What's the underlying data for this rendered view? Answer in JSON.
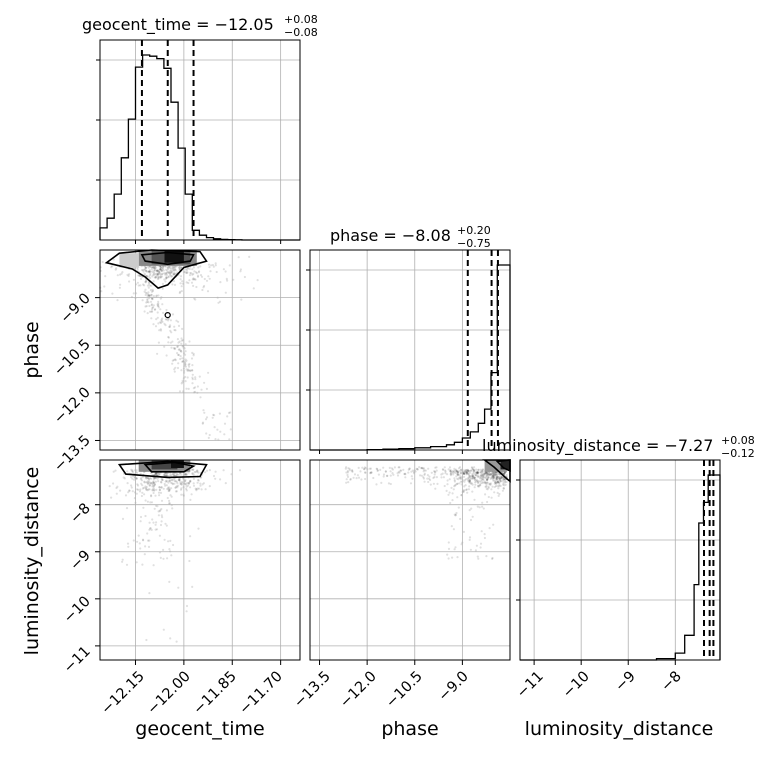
{
  "chart_data": {
    "type": "corner",
    "parameters": [
      "geocent_time",
      "phase",
      "luminosity_distance"
    ],
    "titles": [
      {
        "text": "geocent_time = −12.05",
        "plus": "+0.08",
        "minus": "−0.08"
      },
      {
        "text": "phase = −8.08",
        "plus": "+0.20",
        "minus": "−0.75"
      },
      {
        "text": "luminosity_distance = −7.27",
        "plus": "+0.08",
        "minus": "−0.12"
      }
    ],
    "axis_labels": [
      "geocent_time",
      "phase",
      "luminosity_distance"
    ],
    "x_tick_labels": [
      [
        "−12.15",
        "−12.00",
        "−11.85",
        "−11.70"
      ],
      [
        "−13.5",
        "−12.0",
        "−10.5",
        "−9.0"
      ],
      [
        "−11",
        "−10",
        "−9",
        "−8"
      ]
    ],
    "y_tick_labels": {
      "phase": [
        "−9.0",
        "−10.5",
        "−12.0",
        "−13.5"
      ],
      "luminosity_distance": [
        "−8",
        "−9",
        "−10",
        "−11"
      ]
    },
    "ranges": {
      "geocent_time": [
        -12.26,
        -11.64
      ],
      "phase": [
        -13.8,
        -7.5
      ],
      "luminosity_distance": [
        -11.3,
        -7.05
      ]
    },
    "quantiles": {
      "geocent_time": [
        -12.13,
        -12.05,
        -11.97
      ],
      "phase": [
        -8.83,
        -8.08,
        -7.88
      ],
      "luminosity_distance": [
        -7.39,
        -7.27,
        -7.19
      ]
    },
    "hist_geocent_time": {
      "edges": [
        -12.26,
        -12.238,
        -12.216,
        -12.194,
        -12.172,
        -12.15,
        -12.128,
        -12.106,
        -12.084,
        -12.062,
        -12.04,
        -12.018,
        -11.996,
        -11.974,
        -11.952,
        -11.93,
        -11.908,
        -11.886,
        -11.864,
        -11.842,
        -11.82,
        -11.64
      ],
      "counts": [
        0.1,
        0.18,
        0.38,
        0.68,
        1.0,
        1.43,
        1.53,
        1.52,
        1.5,
        1.42,
        1.14,
        0.76,
        0.38,
        0.08,
        0.04,
        0.02,
        0.01,
        0.005,
        0.003,
        0.002,
        0
      ]
    },
    "hist_phase": {
      "edges": [
        -13.8,
        -12.0,
        -11.5,
        -11.0,
        -10.5,
        -10.0,
        -9.5,
        -9.25,
        -9.0,
        -8.75,
        -8.5,
        -8.3,
        -8.1,
        -7.9,
        -7.7,
        -7.5
      ],
      "counts": [
        0,
        0.01,
        0.02,
        0.03,
        0.05,
        0.08,
        0.12,
        0.18,
        0.28,
        0.42,
        0.62,
        0.95,
        1.8,
        4.3,
        4.3
      ]
    },
    "hist_luminosity_distance": {
      "edges": [
        -11.3,
        -8.4,
        -8.0,
        -7.8,
        -7.6,
        -7.5,
        -7.4,
        -7.3,
        -7.2,
        -7.05
      ],
      "counts": [
        0,
        0.01,
        0.05,
        0.18,
        0.55,
        1.0,
        1.15,
        1.35,
        1.35
      ]
    },
    "grid": true
  }
}
